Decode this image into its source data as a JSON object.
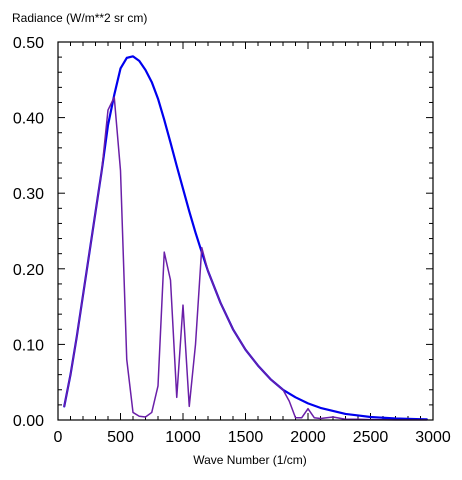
{
  "chart_data": {
    "type": "line",
    "title": "",
    "ylabel": "Radiance (W/m**2 sr cm)",
    "xlabel": "Wave Number (1/cm)",
    "xlim": [
      0,
      3000
    ],
    "ylim": [
      0,
      0.5
    ],
    "xticks": [
      0,
      500,
      1000,
      1500,
      2000,
      2500,
      3000
    ],
    "xtick_labels": [
      "0",
      "500",
      "1000",
      "1500",
      "2000",
      "2500",
      "3000"
    ],
    "yticks": [
      0,
      0.1,
      0.2,
      0.3,
      0.4,
      0.5
    ],
    "ytick_labels": [
      "0.00",
      "0.10",
      "0.20",
      "0.30",
      "0.40",
      "0.50"
    ],
    "grid": false,
    "legend": "none",
    "series": [
      {
        "color": "#0000ee",
        "points": [
          [
            50,
            0.018
          ],
          [
            100,
            0.06
          ],
          [
            150,
            0.11
          ],
          [
            200,
            0.165
          ],
          [
            250,
            0.22
          ],
          [
            300,
            0.275
          ],
          [
            350,
            0.33
          ],
          [
            400,
            0.39
          ],
          [
            450,
            0.43
          ],
          [
            500,
            0.465
          ],
          [
            550,
            0.479
          ],
          [
            600,
            0.481
          ],
          [
            650,
            0.475
          ],
          [
            700,
            0.463
          ],
          [
            750,
            0.447
          ],
          [
            800,
            0.425
          ],
          [
            850,
            0.397
          ],
          [
            900,
            0.367
          ],
          [
            950,
            0.336
          ],
          [
            1000,
            0.306
          ],
          [
            1050,
            0.276
          ],
          [
            1100,
            0.248
          ],
          [
            1150,
            0.222
          ],
          [
            1200,
            0.197
          ],
          [
            1300,
            0.155
          ],
          [
            1400,
            0.12
          ],
          [
            1500,
            0.093
          ],
          [
            1600,
            0.072
          ],
          [
            1700,
            0.054
          ],
          [
            1800,
            0.04
          ],
          [
            1900,
            0.03
          ],
          [
            2000,
            0.022
          ],
          [
            2100,
            0.016
          ],
          [
            2200,
            0.012
          ],
          [
            2300,
            0.008
          ],
          [
            2400,
            0.006
          ],
          [
            2500,
            0.004
          ],
          [
            2600,
            0.003
          ],
          [
            2700,
            0.002
          ],
          [
            2800,
            0.0015
          ],
          [
            2900,
            0.001
          ],
          [
            2950,
            0.0008
          ]
        ]
      },
      {
        "color": "#6a1fa8",
        "points": [
          [
            50,
            0.018
          ],
          [
            100,
            0.06
          ],
          [
            150,
            0.11
          ],
          [
            200,
            0.165
          ],
          [
            250,
            0.22
          ],
          [
            300,
            0.275
          ],
          [
            350,
            0.33
          ],
          [
            400,
            0.41
          ],
          [
            450,
            0.427
          ],
          [
            500,
            0.33
          ],
          [
            550,
            0.08
          ],
          [
            600,
            0.01
          ],
          [
            650,
            0.005
          ],
          [
            700,
            0.004
          ],
          [
            750,
            0.01
          ],
          [
            800,
            0.045
          ],
          [
            850,
            0.222
          ],
          [
            900,
            0.185
          ],
          [
            950,
            0.03
          ],
          [
            1000,
            0.152
          ],
          [
            1050,
            0.018
          ],
          [
            1100,
            0.1
          ],
          [
            1150,
            0.228
          ],
          [
            1200,
            0.197
          ],
          [
            1300,
            0.155
          ],
          [
            1400,
            0.12
          ],
          [
            1500,
            0.093
          ],
          [
            1600,
            0.072
          ],
          [
            1700,
            0.054
          ],
          [
            1800,
            0.04
          ],
          [
            1850,
            0.025
          ],
          [
            1900,
            0.003
          ],
          [
            1950,
            0.003
          ],
          [
            2000,
            0.015
          ],
          [
            2050,
            0.003
          ],
          [
            2100,
            0.002
          ],
          [
            2200,
            0.004
          ],
          [
            2300,
            0.001
          ],
          [
            2400,
            0.001
          ],
          [
            2500,
            0.0005
          ],
          [
            2600,
            0.0003
          ],
          [
            2700,
            0.0002
          ],
          [
            2800,
            0.0001
          ],
          [
            2950,
            0.0001
          ]
        ]
      }
    ]
  }
}
